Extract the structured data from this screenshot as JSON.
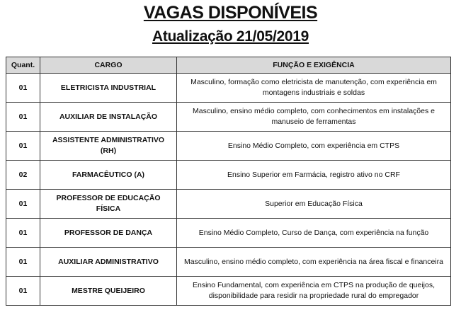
{
  "header": {
    "title": "VAGAS DISPONÍVEIS",
    "subtitle": "Atualização 21/05/2019"
  },
  "table": {
    "columns": [
      "Quant.",
      "CARGO",
      "FUNÇÃO E EXIGÊNCIA"
    ],
    "rows": [
      {
        "quant": "01",
        "cargo": "ELETRICISTA INDUSTRIAL",
        "funcao": "Masculino, formação como eletricista de manutenção, com experiência em montagens industriais e soldas"
      },
      {
        "quant": "01",
        "cargo": "AUXILIAR DE INSTALAÇÃO",
        "funcao": "Masculino, ensino médio completo, com conhecimentos em instalações e manuseio de ferramentas"
      },
      {
        "quant": "01",
        "cargo": "ASSISTENTE ADMINISTRATIVO (RH)",
        "funcao": "Ensino Médio Completo, com experiência em CTPS"
      },
      {
        "quant": "02",
        "cargo": "FARMACÊUTICO (A)",
        "funcao": "Ensino Superior em Farmácia, registro ativo no CRF"
      },
      {
        "quant": "01",
        "cargo": "PROFESSOR DE EDUCAÇÃO FÍSICA",
        "funcao": "Superior em Educação Física"
      },
      {
        "quant": "01",
        "cargo": "PROFESSOR DE DANÇA",
        "funcao": "Ensino Médio Completo, Curso de Dança, com experiência na função"
      },
      {
        "quant": "01",
        "cargo": "AUXILIAR ADMINISTRATIVO",
        "funcao": "Masculino, ensino médio completo, com experiência na área fiscal e financeira"
      },
      {
        "quant": "01",
        "cargo": "MESTRE QUEIJEIRO",
        "funcao": "Ensino Fundamental, com experiência em CTPS na produção de queijos, disponibilidade para residir na propriedade rural do empregador"
      }
    ]
  }
}
